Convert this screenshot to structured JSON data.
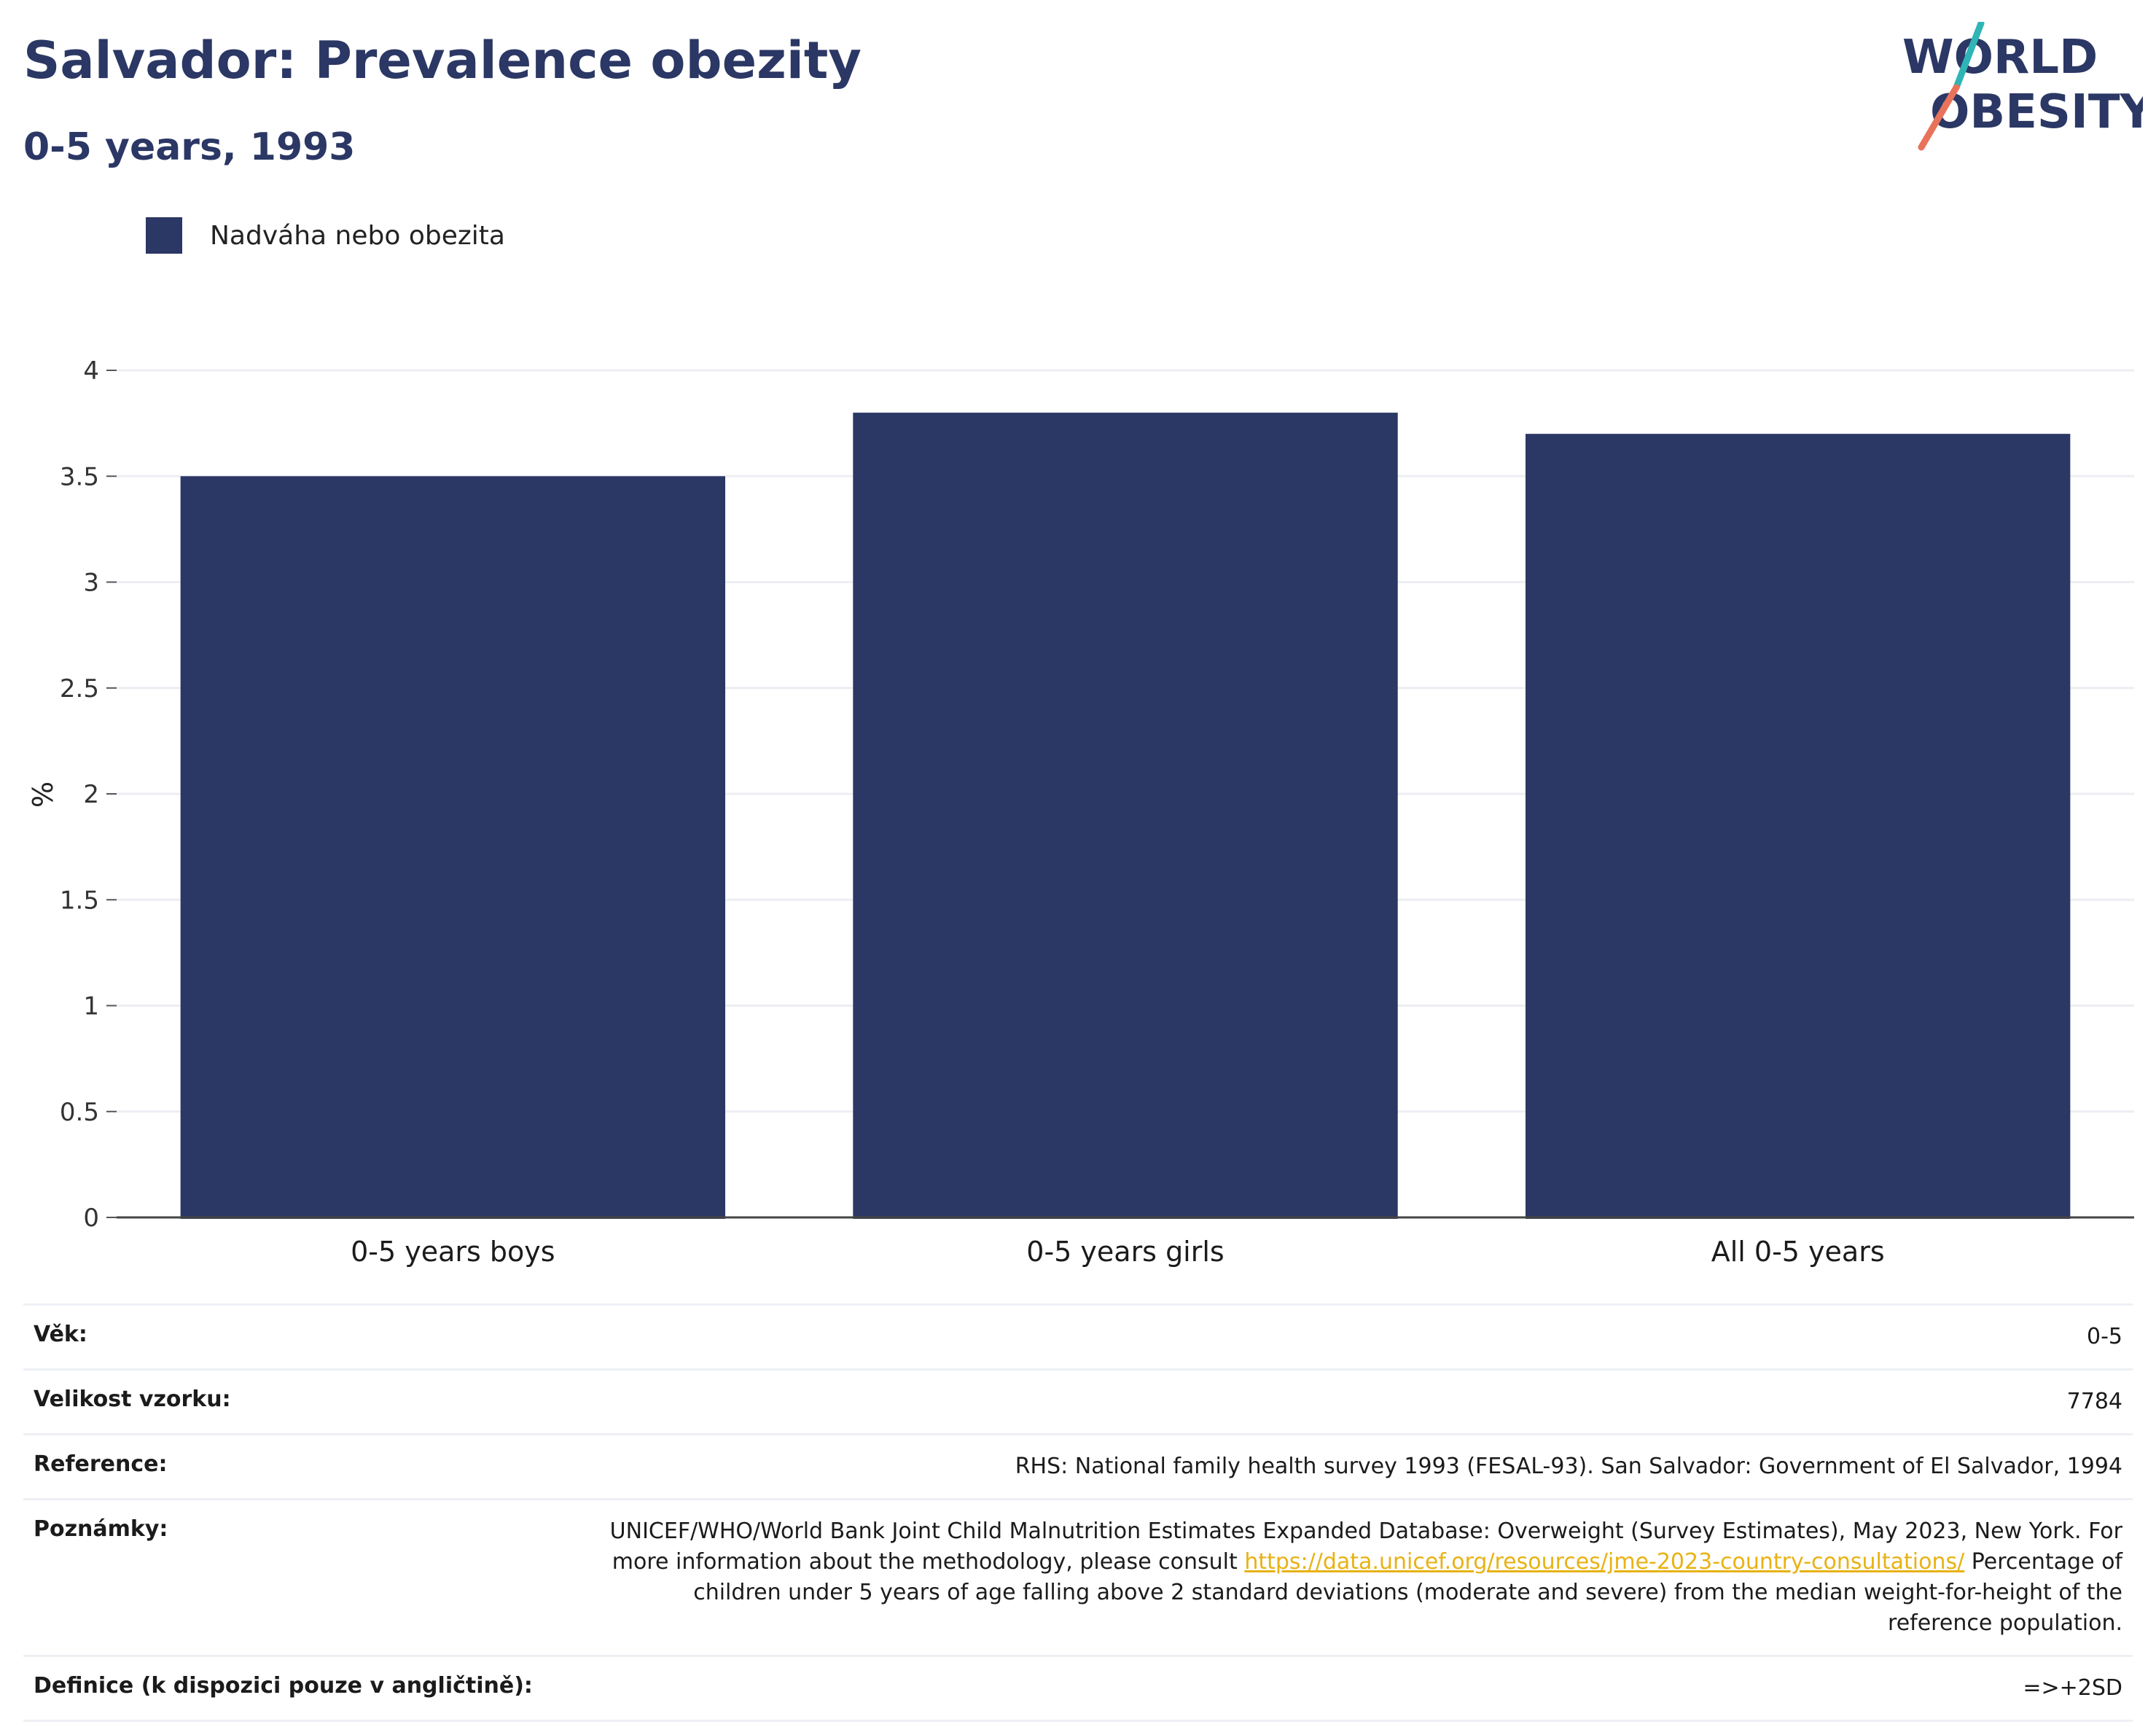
{
  "header": {
    "title": "Salvador: Prevalence obezity",
    "subtitle": "0-5 years, 1993",
    "logo_line1": "WORLD",
    "logo_line2": "OBESITY"
  },
  "colors": {
    "bar": "#2b3764",
    "logo_teal": "#2fb5b5",
    "logo_coral": "#e8735a",
    "link": "#e8b214"
  },
  "chart_data": {
    "type": "bar",
    "categories": [
      "0-5 years boys",
      "0-5 years girls",
      "All 0-5 years"
    ],
    "series": [
      {
        "name": "Nadváha nebo obezita",
        "values": [
          3.5,
          3.8,
          3.7
        ]
      }
    ],
    "ylabel": "%",
    "ylim": [
      0,
      4
    ],
    "yticks": [
      "0",
      "0.5",
      "1",
      "1.5",
      "2",
      "2.5",
      "3",
      "3.5",
      "4"
    ],
    "grid": true,
    "legend": "top-left"
  },
  "info": {
    "age_label": "Věk:",
    "age_value": "0-5",
    "sample_label": "Velikost vzorku:",
    "sample_value": "7784",
    "reference_label": "Reference:",
    "reference_value": "RHS: National family health survey 1993 (FESAL-93). San Salvador: Government of El Salvador, 1994",
    "notes_label": "Poznámky:",
    "notes_text1": "UNICEF/WHO/World Bank Joint Child Malnutrition Estimates Expanded Database: Overweight (Survey Estimates), May 2023, New York. For more information about the methodology, please consult ",
    "notes_link": "https://data.unicef.org/resources/jme-2023-country-consultations/",
    "notes_text2": " Percentage of children under 5 years of age falling above 2 standard deviations (moderate and severe) from the median weight-for-height of the reference population.",
    "definition_label": "Definice (k dispozici pouze v angličtině):",
    "definition_value": "=>+2SD"
  }
}
